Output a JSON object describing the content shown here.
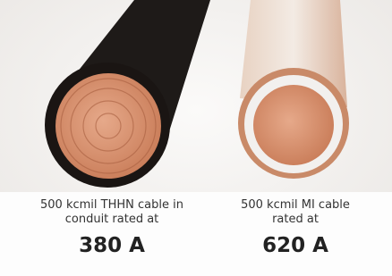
{
  "captions": [
    {
      "lines": [
        "500 kcmil THHN cable in",
        "conduit rated at"
      ],
      "rating": "380 A"
    },
    {
      "lines": [
        "500 kcmil MI cable",
        "rated at"
      ],
      "rating": "620 A"
    }
  ]
}
